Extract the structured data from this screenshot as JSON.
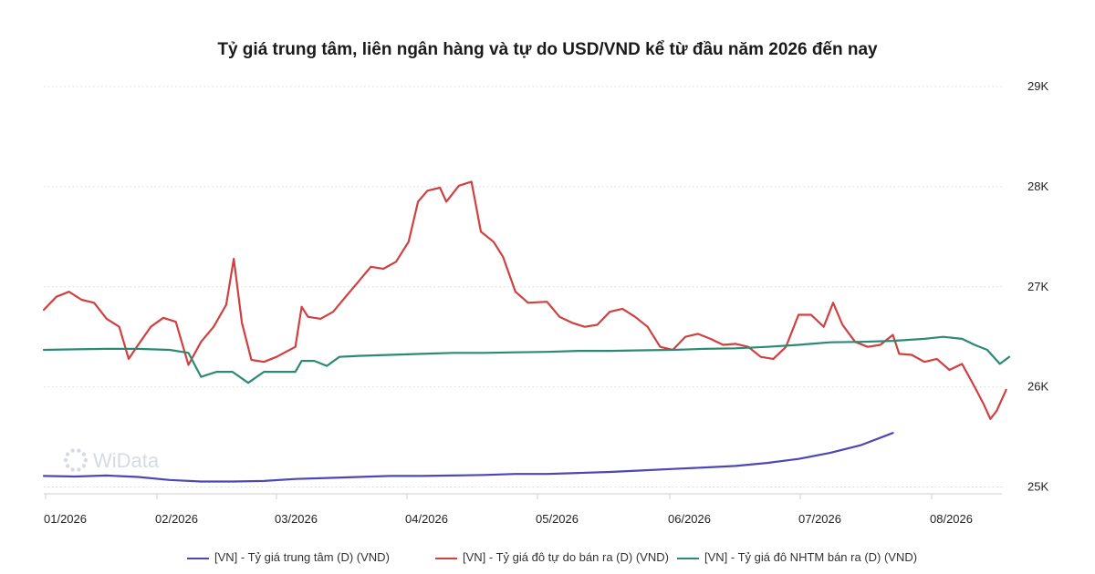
{
  "chart_data": {
    "type": "line",
    "title": "Tỷ giá trung tâm, liên ngân hàng và tự do USD/VND kể từ đầu năm 2026 đến nay",
    "xlabel": "",
    "ylabel": "",
    "ylim": [
      24950,
      29000
    ],
    "yticks": [
      25000,
      26000,
      27000,
      28000,
      29000
    ],
    "ytick_labels": [
      "25K",
      "26K",
      "27K",
      "28K",
      "29K"
    ],
    "xticks": [
      "01/2026",
      "02/2026",
      "03/2026",
      "04/2026",
      "05/2026",
      "06/2026",
      "07/2026",
      "08/2026"
    ],
    "x_unit": "month index (0 = 01/2026 start)",
    "grid": "horizontal dotted",
    "legend_position": "bottom",
    "watermark": "WiData",
    "series": [
      {
        "name": "[VN] - Tỷ giá trung tâm (D) (VND)",
        "color": "#4b47b5",
        "points": [
          [
            0,
            25110
          ],
          [
            0.5,
            25105
          ],
          [
            1,
            25115
          ],
          [
            1.5,
            25100
          ],
          [
            2,
            25070
          ],
          [
            2.5,
            25055
          ],
          [
            3,
            25055
          ],
          [
            3.5,
            25060
          ],
          [
            4,
            25080
          ],
          [
            4.5,
            25090
          ],
          [
            5,
            25100
          ],
          [
            5.5,
            25110
          ],
          [
            6,
            25110
          ],
          [
            6.5,
            25115
          ],
          [
            7,
            25120
          ],
          [
            7.5,
            25130
          ],
          [
            8,
            25130
          ],
          [
            8.5,
            25140
          ],
          [
            9,
            25150
          ],
          [
            9.5,
            25165
          ],
          [
            10,
            25180
          ],
          [
            10.5,
            25195
          ],
          [
            11,
            25210
          ],
          [
            11.5,
            25240
          ],
          [
            12,
            25280
          ],
          [
            12.5,
            25340
          ],
          [
            13,
            25420
          ],
          [
            13.5,
            25540
          ]
        ]
      },
      {
        "name": "[VN] - Tỷ giá đô tự do bán ra (D) (VND)",
        "color": "#d04040",
        "points": [
          [
            0,
            26770
          ],
          [
            0.2,
            26900
          ],
          [
            0.4,
            26950
          ],
          [
            0.6,
            26870
          ],
          [
            0.8,
            26840
          ],
          [
            1.0,
            26680
          ],
          [
            1.2,
            26600
          ],
          [
            1.35,
            26280
          ],
          [
            1.5,
            26420
          ],
          [
            1.7,
            26600
          ],
          [
            1.9,
            26690
          ],
          [
            2.1,
            26650
          ],
          [
            2.3,
            26220
          ],
          [
            2.5,
            26450
          ],
          [
            2.7,
            26600
          ],
          [
            2.9,
            26820
          ],
          [
            3.02,
            27280
          ],
          [
            3.15,
            26640
          ],
          [
            3.3,
            26270
          ],
          [
            3.5,
            26250
          ],
          [
            3.7,
            26300
          ],
          [
            4.0,
            26400
          ],
          [
            4.1,
            26800
          ],
          [
            4.2,
            26700
          ],
          [
            4.4,
            26680
          ],
          [
            4.6,
            26750
          ],
          [
            4.8,
            26900
          ],
          [
            5.0,
            27050
          ],
          [
            5.2,
            27200
          ],
          [
            5.4,
            27180
          ],
          [
            5.6,
            27250
          ],
          [
            5.8,
            27450
          ],
          [
            5.95,
            27850
          ],
          [
            6.1,
            27960
          ],
          [
            6.3,
            27990
          ],
          [
            6.4,
            27850
          ],
          [
            6.6,
            28010
          ],
          [
            6.8,
            28050
          ],
          [
            6.95,
            27550
          ],
          [
            7.15,
            27450
          ],
          [
            7.3,
            27300
          ],
          [
            7.5,
            26950
          ],
          [
            7.7,
            26840
          ],
          [
            8.0,
            26850
          ],
          [
            8.2,
            26700
          ],
          [
            8.4,
            26640
          ],
          [
            8.6,
            26600
          ],
          [
            8.8,
            26620
          ],
          [
            9.0,
            26750
          ],
          [
            9.2,
            26780
          ],
          [
            9.4,
            26700
          ],
          [
            9.6,
            26600
          ],
          [
            9.8,
            26400
          ],
          [
            10.0,
            26370
          ],
          [
            10.2,
            26500
          ],
          [
            10.4,
            26530
          ],
          [
            10.6,
            26480
          ],
          [
            10.8,
            26420
          ],
          [
            11.0,
            26430
          ],
          [
            11.2,
            26400
          ],
          [
            11.4,
            26300
          ],
          [
            11.6,
            26280
          ],
          [
            11.8,
            26400
          ],
          [
            12.0,
            26720
          ],
          [
            12.2,
            26720
          ],
          [
            12.4,
            26600
          ],
          [
            12.55,
            26840
          ],
          [
            12.7,
            26620
          ],
          [
            12.9,
            26450
          ],
          [
            13.1,
            26400
          ],
          [
            13.3,
            26420
          ],
          [
            13.5,
            26520
          ],
          [
            13.6,
            26330
          ],
          [
            13.8,
            26320
          ],
          [
            14.0,
            26250
          ],
          [
            14.2,
            26280
          ],
          [
            14.4,
            26170
          ],
          [
            14.6,
            26230
          ],
          [
            14.8,
            26000
          ],
          [
            14.95,
            25820
          ],
          [
            15.05,
            25680
          ],
          [
            15.15,
            25760
          ],
          [
            15.3,
            25970
          ]
        ]
      },
      {
        "name": "[VN] - Tỷ giá đô NHTM bán ra (D) (VND)",
        "color": "#2c8a74",
        "points": [
          [
            0,
            26370
          ],
          [
            0.5,
            26375
          ],
          [
            1,
            26380
          ],
          [
            1.5,
            26380
          ],
          [
            2,
            26370
          ],
          [
            2.3,
            26340
          ],
          [
            2.5,
            26100
          ],
          [
            2.75,
            26150
          ],
          [
            3,
            26150
          ],
          [
            3.25,
            26040
          ],
          [
            3.5,
            26150
          ],
          [
            3.75,
            26150
          ],
          [
            4,
            26150
          ],
          [
            4.1,
            26260
          ],
          [
            4.3,
            26260
          ],
          [
            4.5,
            26210
          ],
          [
            4.7,
            26300
          ],
          [
            5,
            26310
          ],
          [
            5.5,
            26320
          ],
          [
            6,
            26330
          ],
          [
            6.5,
            26340
          ],
          [
            7,
            26340
          ],
          [
            7.5,
            26345
          ],
          [
            8,
            26350
          ],
          [
            8.5,
            26360
          ],
          [
            9,
            26360
          ],
          [
            9.5,
            26365
          ],
          [
            10,
            26370
          ],
          [
            10.5,
            26380
          ],
          [
            11,
            26385
          ],
          [
            11.5,
            26400
          ],
          [
            12,
            26420
          ],
          [
            12.5,
            26445
          ],
          [
            13,
            26450
          ],
          [
            13.5,
            26460
          ],
          [
            14,
            26480
          ],
          [
            14.3,
            26500
          ],
          [
            14.6,
            26480
          ],
          [
            14.8,
            26420
          ],
          [
            15.0,
            26370
          ],
          [
            15.2,
            26230
          ],
          [
            15.35,
            26300
          ]
        ]
      }
    ]
  }
}
